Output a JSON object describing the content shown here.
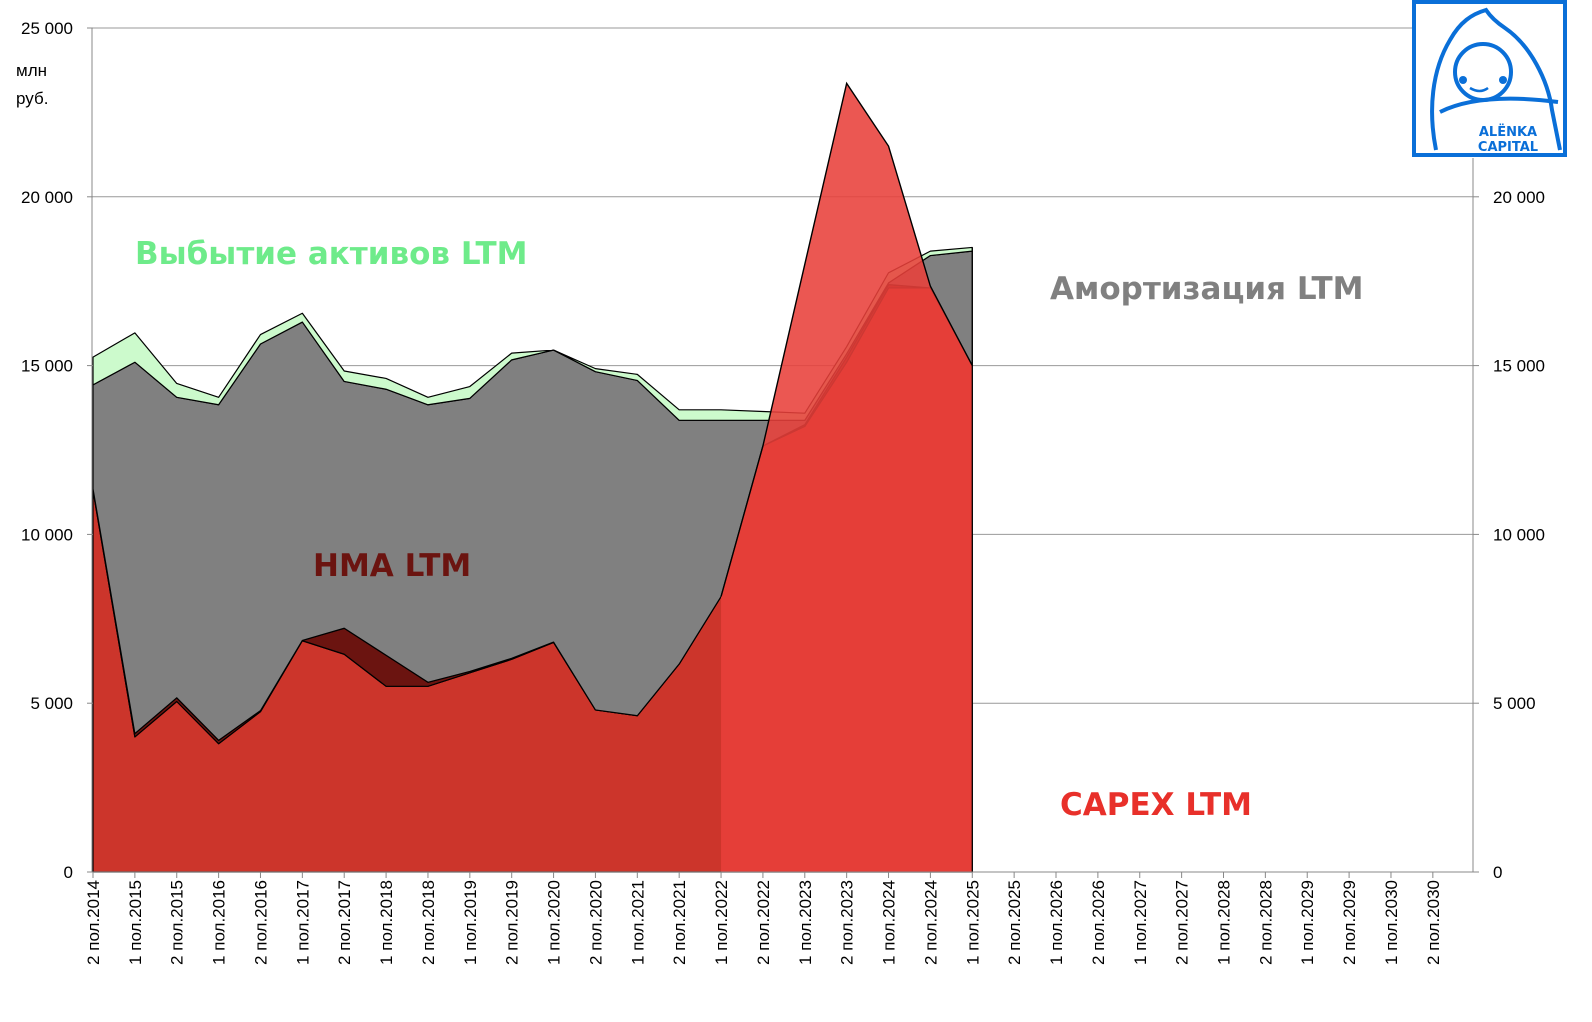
{
  "chart_data": {
    "type": "area",
    "stacked": true,
    "unit_label_line1": "млн",
    "unit_label_line2": "руб.",
    "ylim": [
      0,
      25000
    ],
    "yticks": [
      "0",
      "5 000",
      "10 000",
      "15 000",
      "20 000",
      "25 000"
    ],
    "yticks_right": [
      "0",
      "5 000",
      "10 000",
      "15 000",
      "20 000"
    ],
    "grid": true,
    "categories": [
      "2 пол.2014",
      "1 пол.2015",
      "2 пол.2015",
      "1 пол.2016",
      "2 пол.2016",
      "1 пол.2017",
      "2 пол.2017",
      "1 пол.2018",
      "2 пол.2018",
      "1 пол.2019",
      "2 пол.2019",
      "1 пол.2020",
      "2 пол.2020",
      "1 пол.2021",
      "2 пол.2021",
      "1 пол.2022",
      "2 пол.2022",
      "1 пол.2023",
      "2 пол.2023",
      "1 пол.2024",
      "2 пол.2024",
      "1 пол.2025",
      "2 пол.2025",
      "1 пол.2026",
      "2 пол.2026",
      "1 пол.2027",
      "2 пол.2027",
      "1 пол.2028",
      "2 пол.2028",
      "1 пол.2029",
      "2 пол.2029",
      "1 пол.2030",
      "2 пол.2030"
    ],
    "stack": [
      {
        "color": "#CC352B",
        "values": [
          11300,
          4000,
          5050,
          3800,
          4750,
          6850,
          6450,
          5500,
          5500,
          5900,
          6300,
          6800,
          4800,
          4630,
          6160,
          8160,
          12620,
          13200,
          15100,
          17300,
          17300,
          15000
        ]
      },
      {
        "name": "НМА LTM",
        "color": "#6B1410",
        "values": [
          50,
          100,
          110,
          100,
          30,
          10,
          770,
          920,
          120,
          40,
          30,
          10,
          0,
          0,
          0,
          0,
          0,
          50,
          150,
          100,
          0,
          0
        ]
      },
      {
        "name": "Амортизация LTM",
        "color": "#808080",
        "values": [
          3080,
          11000,
          8900,
          9940,
          10860,
          9430,
          7310,
          7880,
          8220,
          8090,
          8840,
          8650,
          10020,
          9930,
          7220,
          5220,
          760,
          130,
          100,
          50,
          960,
          3390
        ]
      },
      {
        "name": "Выбытие активов LTM",
        "color": "#CCFACC",
        "values": [
          820,
          870,
          410,
          220,
          280,
          260,
          310,
          320,
          220,
          350,
          200,
          0,
          90,
          180,
          310,
          310,
          260,
          210,
          210,
          300,
          130,
          110
        ]
      }
    ],
    "overlay": {
      "name": "CAPEX LTM",
      "color": "#E8403A",
      "values": [
        null,
        null,
        null,
        null,
        null,
        null,
        null,
        null,
        null,
        null,
        null,
        null,
        null,
        null,
        null,
        8160,
        12620,
        18000,
        23360,
        21500,
        17350,
        15000
      ]
    },
    "labels": {
      "disposal": {
        "text": "Выбытие активов LTM",
        "color": "#6EEB8A"
      },
      "amortization": {
        "text": "Амортизация LTM",
        "color": "#808080"
      },
      "hma": {
        "text": "НМА LTM",
        "color": "#6B1410"
      },
      "capex": {
        "text": "CAPEX LTM",
        "color": "#E8302A"
      }
    }
  },
  "logo": {
    "line1": "ALЁNKA",
    "line2": "CAPITAL",
    "color": "#0A6FD8"
  }
}
